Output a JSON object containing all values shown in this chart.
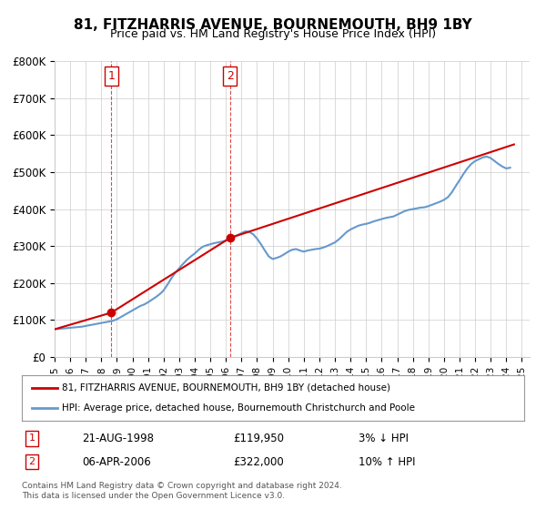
{
  "title": "81, FITZHARRIS AVENUE, BOURNEMOUTH, BH9 1BY",
  "subtitle": "Price paid vs. HM Land Registry's House Price Index (HPI)",
  "ylabel_ticks": [
    "£0",
    "£100K",
    "£200K",
    "£300K",
    "£400K",
    "£500K",
    "£600K",
    "£700K",
    "£800K"
  ],
  "ytick_values": [
    0,
    100000,
    200000,
    300000,
    400000,
    500000,
    600000,
    700000,
    800000
  ],
  "ylim": [
    0,
    800000
  ],
  "sale1_date": "21-AUG-1998",
  "sale1_price": 119950,
  "sale1_label": "1",
  "sale1_hpi": "3% ↓ HPI",
  "sale2_date": "06-APR-2006",
  "sale2_price": 322000,
  "sale2_label": "2",
  "sale2_hpi": "10% ↑ HPI",
  "legend_line1": "81, FITZHARRIS AVENUE, BOURNEMOUTH, BH9 1BY (detached house)",
  "legend_line2": "HPI: Average price, detached house, Bournemouth Christchurch and Poole",
  "footnote": "Contains HM Land Registry data © Crown copyright and database right 2024.\nThis data is licensed under the Open Government Licence v3.0.",
  "line_color_price": "#cc0000",
  "line_color_hpi": "#6699cc",
  "marker_color": "#cc0000",
  "bg_color": "#ffffff",
  "grid_color": "#cccccc",
  "annotation_box_color": "#cc0000",
  "hpi_data": {
    "years": [
      1995,
      1995.25,
      1995.5,
      1995.75,
      1996,
      1996.25,
      1996.5,
      1996.75,
      1997,
      1997.25,
      1997.5,
      1997.75,
      1998,
      1998.25,
      1998.5,
      1998.75,
      1999,
      1999.25,
      1999.5,
      1999.75,
      2000,
      2000.25,
      2000.5,
      2000.75,
      2001,
      2001.25,
      2001.5,
      2001.75,
      2002,
      2002.25,
      2002.5,
      2002.75,
      2003,
      2003.25,
      2003.5,
      2003.75,
      2004,
      2004.25,
      2004.5,
      2004.75,
      2005,
      2005.25,
      2005.5,
      2005.75,
      2006,
      2006.25,
      2006.5,
      2006.75,
      2007,
      2007.25,
      2007.5,
      2007.75,
      2008,
      2008.25,
      2008.5,
      2008.75,
      2009,
      2009.25,
      2009.5,
      2009.75,
      2010,
      2010.25,
      2010.5,
      2010.75,
      2011,
      2011.25,
      2011.5,
      2011.75,
      2012,
      2012.25,
      2012.5,
      2012.75,
      2013,
      2013.25,
      2013.5,
      2013.75,
      2014,
      2014.25,
      2014.5,
      2014.75,
      2015,
      2015.25,
      2015.5,
      2015.75,
      2016,
      2016.25,
      2016.5,
      2016.75,
      2017,
      2017.25,
      2017.5,
      2017.75,
      2018,
      2018.25,
      2018.5,
      2018.75,
      2019,
      2019.25,
      2019.5,
      2019.75,
      2020,
      2020.25,
      2020.5,
      2020.75,
      2021,
      2021.25,
      2021.5,
      2021.75,
      2022,
      2022.25,
      2022.5,
      2022.75,
      2023,
      2023.25,
      2023.5,
      2023.75,
      2024,
      2024.25
    ],
    "values": [
      75000,
      76000,
      77000,
      78000,
      79000,
      80000,
      81000,
      82000,
      84000,
      86000,
      88000,
      90000,
      92000,
      94000,
      96000,
      98000,
      102000,
      108000,
      114000,
      120000,
      126000,
      132000,
      138000,
      142000,
      148000,
      155000,
      162000,
      170000,
      180000,
      196000,
      213000,
      228000,
      240000,
      252000,
      263000,
      272000,
      280000,
      290000,
      298000,
      302000,
      305000,
      308000,
      310000,
      312000,
      315000,
      320000,
      325000,
      330000,
      335000,
      340000,
      338000,
      332000,
      320000,
      305000,
      288000,
      272000,
      265000,
      268000,
      272000,
      278000,
      285000,
      290000,
      292000,
      288000,
      285000,
      288000,
      290000,
      292000,
      293000,
      296000,
      300000,
      305000,
      310000,
      318000,
      328000,
      338000,
      345000,
      350000,
      355000,
      358000,
      360000,
      363000,
      367000,
      370000,
      373000,
      376000,
      378000,
      380000,
      385000,
      390000,
      395000,
      398000,
      400000,
      402000,
      404000,
      405000,
      408000,
      412000,
      416000,
      420000,
      425000,
      432000,
      445000,
      462000,
      478000,
      495000,
      510000,
      522000,
      530000,
      535000,
      540000,
      542000,
      538000,
      530000,
      522000,
      515000,
      510000,
      512000
    ]
  },
  "price_data": {
    "years": [
      1995,
      1998.64,
      2006.26,
      2024.5
    ],
    "values": [
      75000,
      119950,
      322000,
      575000
    ]
  },
  "sale_markers": [
    {
      "year": 1998.64,
      "price": 119950,
      "label": "1"
    },
    {
      "year": 2006.26,
      "price": 322000,
      "label": "2"
    }
  ],
  "xtick_years": [
    1995,
    1996,
    1997,
    1998,
    1999,
    2000,
    2001,
    2002,
    2003,
    2004,
    2005,
    2006,
    2007,
    2008,
    2009,
    2010,
    2011,
    2012,
    2013,
    2014,
    2015,
    2016,
    2017,
    2018,
    2019,
    2020,
    2021,
    2022,
    2023,
    2024,
    2025
  ]
}
